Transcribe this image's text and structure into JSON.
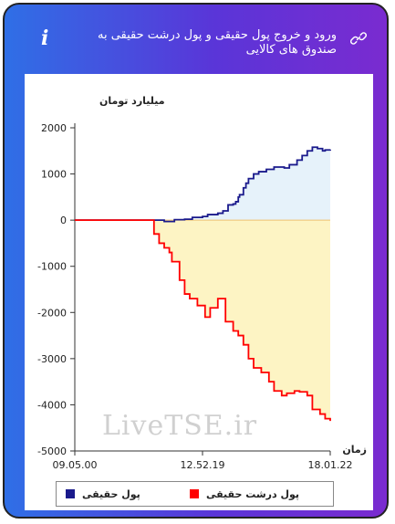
{
  "header": {
    "title": "ورود و خروج پول حقیقی و پول درشت حقیقی به صندوق های کالایی",
    "info_glyph": "i"
  },
  "colors": {
    "real_money": "#1a1a8c",
    "large_real_money": "#ff0000",
    "real_fill": "#e6f2fa",
    "large_fill": "#fdf4c4"
  },
  "watermark": "LiveTSE.ir",
  "chart_data": {
    "type": "line",
    "ylabel": "میلیارد تومان",
    "xlabel": "زمان",
    "ylim": [
      -5000,
      2000
    ],
    "yticks": [
      2000,
      1000,
      0,
      -1000,
      -2000,
      -3000,
      -4000,
      -5000
    ],
    "ytick_labels": [
      "2000",
      "1000",
      "0",
      "-1000",
      "-2000",
      "-3000",
      "-4000",
      "-5000"
    ],
    "xtick_labels": [
      "09.05.00",
      "12.52.19",
      "18.01.22"
    ],
    "xtick_positions": [
      0,
      0.5,
      1
    ],
    "series": [
      {
        "name": "پول حقیقی",
        "key": "real",
        "step": true,
        "points": [
          [
            0.0,
            0
          ],
          [
            0.3,
            0
          ],
          [
            0.35,
            -30
          ],
          [
            0.39,
            10
          ],
          [
            0.43,
            20
          ],
          [
            0.46,
            60
          ],
          [
            0.5,
            80
          ],
          [
            0.52,
            120
          ],
          [
            0.56,
            150
          ],
          [
            0.58,
            200
          ],
          [
            0.6,
            330
          ],
          [
            0.62,
            350
          ],
          [
            0.63,
            400
          ],
          [
            0.64,
            500
          ],
          [
            0.645,
            550
          ],
          [
            0.66,
            700
          ],
          [
            0.67,
            800
          ],
          [
            0.68,
            900
          ],
          [
            0.7,
            1000
          ],
          [
            0.72,
            1050
          ],
          [
            0.75,
            1100
          ],
          [
            0.78,
            1150
          ],
          [
            0.82,
            1130
          ],
          [
            0.84,
            1200
          ],
          [
            0.87,
            1300
          ],
          [
            0.89,
            1400
          ],
          [
            0.91,
            1500
          ],
          [
            0.93,
            1580
          ],
          [
            0.95,
            1550
          ],
          [
            0.97,
            1500
          ],
          [
            0.98,
            1520
          ],
          [
            1.0,
            1530
          ]
        ]
      },
      {
        "name": "پول درشت حقیقی",
        "key": "large",
        "step": true,
        "points": [
          [
            0.0,
            0
          ],
          [
            0.3,
            0
          ],
          [
            0.31,
            -300
          ],
          [
            0.33,
            -500
          ],
          [
            0.35,
            -600
          ],
          [
            0.37,
            -700
          ],
          [
            0.38,
            -900
          ],
          [
            0.41,
            -1300
          ],
          [
            0.43,
            -1600
          ],
          [
            0.45,
            -1700
          ],
          [
            0.48,
            -1850
          ],
          [
            0.51,
            -2100
          ],
          [
            0.53,
            -1900
          ],
          [
            0.56,
            -1700
          ],
          [
            0.59,
            -2200
          ],
          [
            0.62,
            -2400
          ],
          [
            0.64,
            -2500
          ],
          [
            0.66,
            -2700
          ],
          [
            0.68,
            -3000
          ],
          [
            0.7,
            -3200
          ],
          [
            0.73,
            -3300
          ],
          [
            0.76,
            -3500
          ],
          [
            0.78,
            -3700
          ],
          [
            0.81,
            -3800
          ],
          [
            0.83,
            -3750
          ],
          [
            0.86,
            -3700
          ],
          [
            0.88,
            -3720
          ],
          [
            0.91,
            -3800
          ],
          [
            0.93,
            -4100
          ],
          [
            0.96,
            -4200
          ],
          [
            0.98,
            -4300
          ],
          [
            1.0,
            -4350
          ]
        ]
      }
    ],
    "legend": [
      {
        "label": "پول حقیقی",
        "color": "#1a1a8c"
      },
      {
        "label": "پول درشت حقیقی",
        "color": "#ff0000"
      }
    ]
  }
}
